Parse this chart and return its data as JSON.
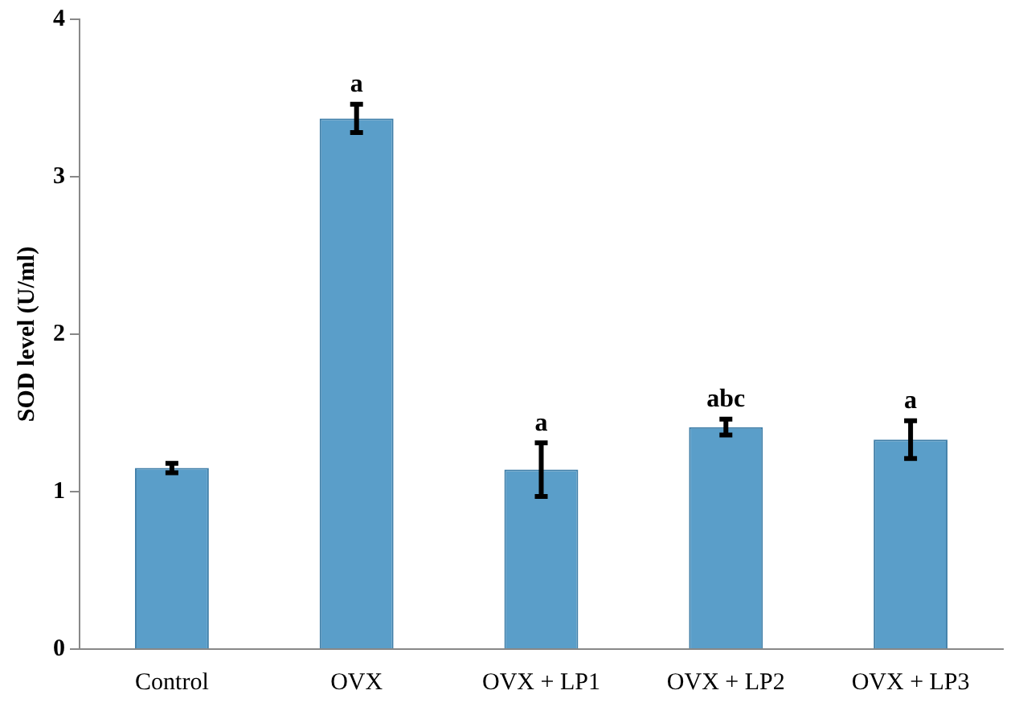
{
  "chart_data": {
    "type": "bar",
    "ylabel": "SOD level (U/ml)",
    "categories": [
      "Control",
      "OVX",
      "OVX + LP1",
      "OVX + LP2",
      "OVX + LP3"
    ],
    "values": [
      1.15,
      3.37,
      1.14,
      1.41,
      1.33
    ],
    "color": "#5a9ec9",
    "errors": [
      0.03,
      0.09,
      0.17,
      0.05,
      0.12
    ],
    "ylim": [
      0,
      4
    ],
    "yticks": [
      0,
      1,
      2,
      3,
      4
    ],
    "grid": false,
    "annotations": [
      {
        "text": "a",
        "x": "OVX",
        "y": 3.46
      },
      {
        "text": "a",
        "x": "OVX + LP1",
        "y": 1.31
      },
      {
        "text": "abc",
        "x": "OVX + LP2",
        "y": 1.46
      },
      {
        "text": "a",
        "x": "OVX + LP3",
        "y": 1.45
      }
    ]
  }
}
